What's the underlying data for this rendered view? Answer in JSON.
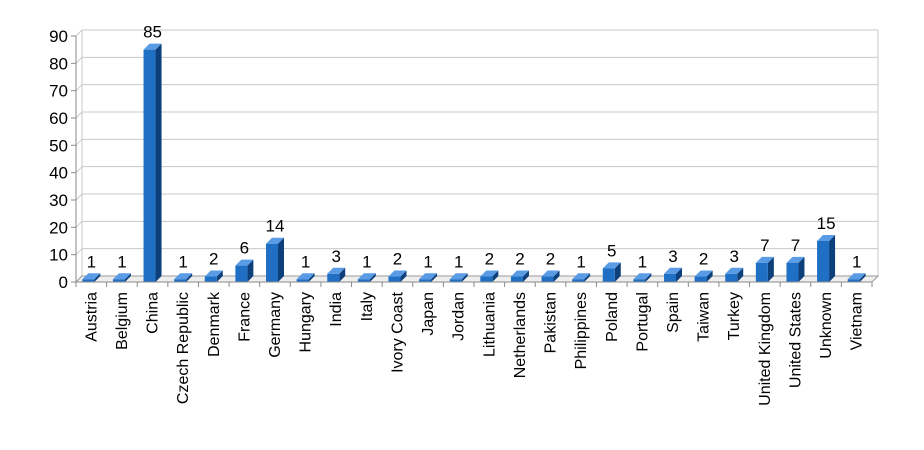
{
  "chart_data": {
    "type": "bar",
    "categories": [
      "Austria",
      "Belgium",
      "China",
      "Czech Republic",
      "Denmark",
      "France",
      "Germany",
      "Hungary",
      "India",
      "Italy",
      "Ivory Coast",
      "Japan",
      "Jordan",
      "Lithuania",
      "Netherlands",
      "Pakistan",
      "Philippines",
      "Poland",
      "Portugal",
      "Spain",
      "Taiwan",
      "Turkey",
      "United Kingdom",
      "United States",
      "Unknown",
      "Vietnam"
    ],
    "values": [
      1,
      1,
      85,
      1,
      2,
      6,
      14,
      1,
      3,
      1,
      2,
      1,
      1,
      2,
      2,
      2,
      1,
      5,
      1,
      3,
      2,
      3,
      7,
      7,
      15,
      1
    ],
    "ylim": [
      0,
      90
    ],
    "yticks": [
      0,
      10,
      20,
      30,
      40,
      50,
      60,
      70,
      80,
      90
    ],
    "title": "",
    "xlabel": "",
    "ylabel": "",
    "grid": true,
    "data_labels": true,
    "bar_color": "#1f6fc5",
    "bar_side_color": "#0d3f7a",
    "bar_top_color": "#5a9be6"
  }
}
